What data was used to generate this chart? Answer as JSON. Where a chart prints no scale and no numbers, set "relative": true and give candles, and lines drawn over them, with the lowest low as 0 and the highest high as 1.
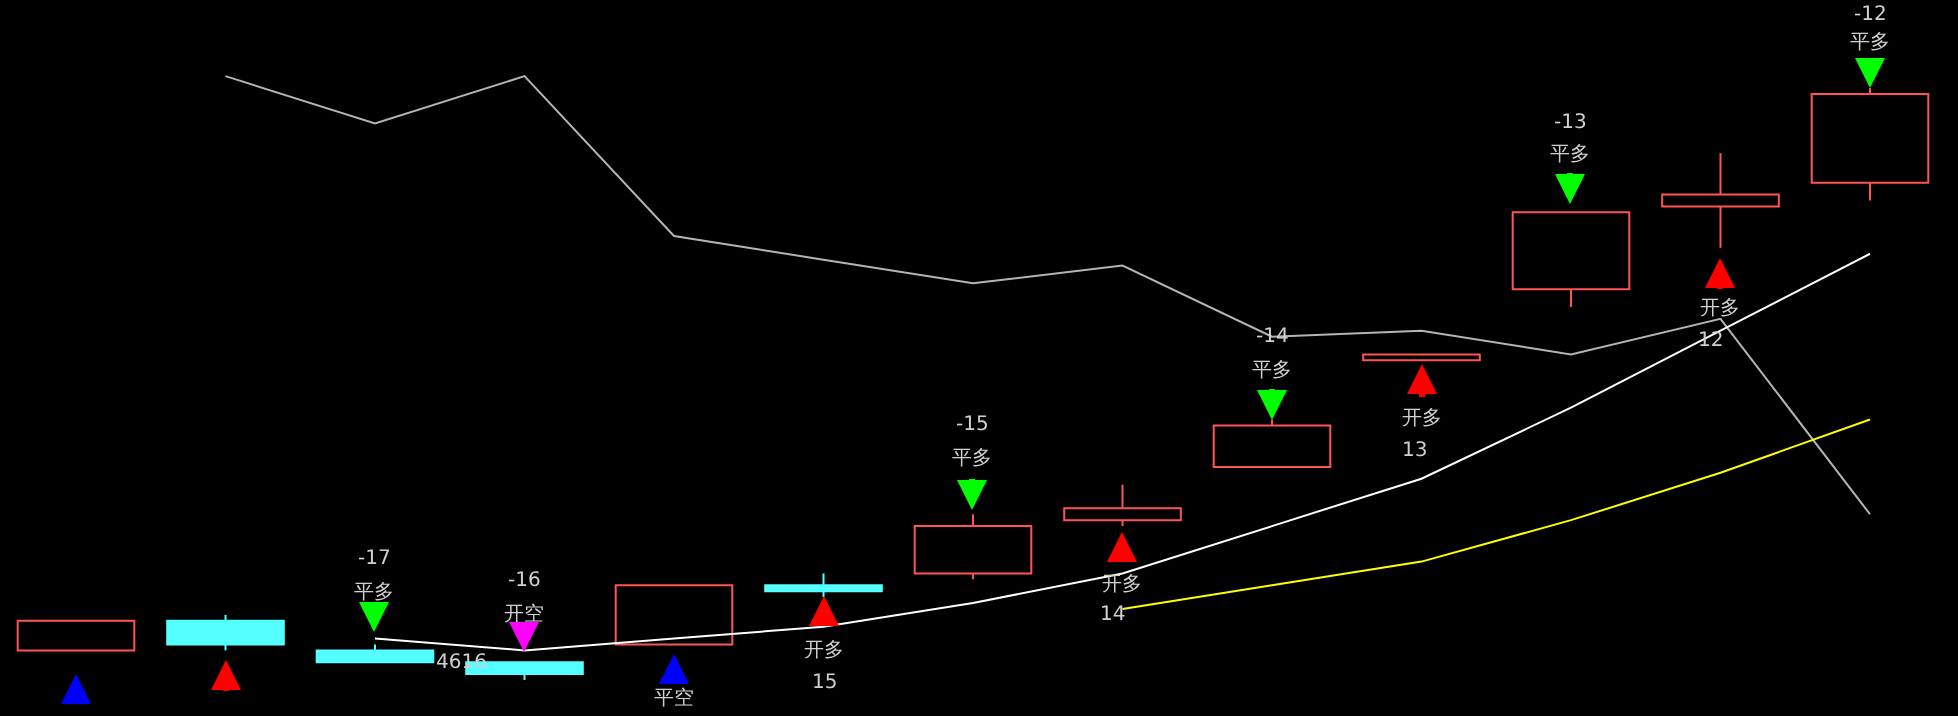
{
  "chart_data": {
    "type": "candlestick",
    "relative": true,
    "categories": [
      null,
      null,
      null,
      null,
      null,
      null,
      null,
      null,
      null,
      null,
      null,
      null,
      null
    ],
    "ohlc": [
      [
        0.05,
        0.1,
        0.05,
        0.1
      ],
      [
        0.1,
        0.11,
        0.05,
        0.06
      ],
      [
        0.05,
        0.06,
        0.03,
        0.03
      ],
      [
        0.03,
        0.03,
        0.0,
        0.01
      ],
      [
        0.06,
        0.16,
        0.06,
        0.16
      ],
      [
        0.16,
        0.18,
        0.14,
        0.15
      ],
      [
        0.18,
        0.28,
        0.17,
        0.26
      ],
      [
        0.27,
        0.33,
        0.26,
        0.29
      ],
      [
        0.36,
        0.44,
        0.36,
        0.43
      ],
      [
        0.54,
        0.55,
        0.54,
        0.55
      ],
      [
        0.66,
        0.79,
        0.63,
        0.79
      ],
      [
        0.8,
        0.89,
        0.73,
        0.82
      ],
      [
        0.84,
        1.0,
        0.81,
        0.99
      ]
    ],
    "series": [
      {
        "type": "line",
        "color": "#b4b4b4",
        "values": [
          null,
          1.02,
          0.94,
          1.02,
          0.75,
          0.71,
          0.67,
          0.7,
          0.58,
          0.59,
          0.55,
          0.61,
          0.28
        ]
      },
      {
        "type": "line",
        "color": "#ffffff",
        "values": [
          null,
          null,
          0.07,
          0.05,
          0.07,
          0.09,
          0.13,
          0.18,
          0.26,
          0.34,
          0.46,
          0.59,
          0.72
        ]
      },
      {
        "type": "line",
        "color": "#ffff00",
        "values": [
          null,
          null,
          null,
          null,
          null,
          null,
          null,
          0.12,
          0.16,
          0.2,
          0.27,
          0.35,
          0.44
        ]
      }
    ],
    "annotations": [
      "-17",
      "平多",
      "-16",
      "开空",
      "4616",
      "平空",
      "开多",
      "15",
      "-15",
      "平多",
      "开多",
      "14",
      "-14",
      "平多",
      "开多",
      "13",
      "-13",
      "平多",
      "开多",
      "12",
      "-12",
      "平多"
    ],
    "grid": false
  }
}
